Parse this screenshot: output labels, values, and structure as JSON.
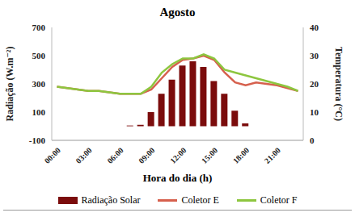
{
  "chart_data": {
    "type": "bar",
    "title": "Agosto",
    "x_label": "Hora do dia (h)",
    "y_label": "Radiação (W.m⁻²)",
    "y2_label": "Temperatura (°C)",
    "categories": [
      "00:00",
      null,
      null,
      "03:00",
      null,
      null,
      "06:00",
      null,
      null,
      "09:00",
      null,
      null,
      "12:00",
      null,
      null,
      "15:00",
      null,
      null,
      "18:00",
      null,
      null,
      "21:00",
      null,
      null
    ],
    "ylim": [
      -100,
      700
    ],
    "yticks": [
      -100,
      100,
      300,
      500,
      700
    ],
    "y2lim": [
      0,
      40
    ],
    "y2ticks": [
      0,
      10,
      20,
      30,
      40
    ],
    "grid": false,
    "legend": "bottom",
    "series": [
      {
        "name": "Radiação Solar",
        "type": "bar",
        "color": "#7b0c0c",
        "values": [
          0,
          0,
          0,
          0,
          0,
          0,
          0,
          5,
          10,
          100,
          230,
          330,
          430,
          460,
          420,
          320,
          230,
          110,
          20,
          0,
          0,
          0,
          0,
          0
        ]
      },
      {
        "name": "Coletor E",
        "type": "line",
        "axis": "y2",
        "color": "#d6604d",
        "values": [
          19,
          18.5,
          18,
          17.5,
          17.5,
          17,
          16.5,
          16.5,
          16.5,
          18,
          22,
          26,
          28.5,
          29,
          30,
          28.5,
          24,
          20.5,
          19.5,
          20.5,
          20,
          19.5,
          18.5,
          17.5
        ]
      },
      {
        "name": "Coletor F",
        "type": "line",
        "axis": "y2",
        "color": "#8dc63f",
        "values": [
          19,
          18.5,
          18,
          17.5,
          17.5,
          17,
          16.5,
          16.5,
          16.5,
          19,
          24,
          27,
          29,
          29,
          30.5,
          29,
          25,
          24,
          23,
          22,
          21,
          20,
          19,
          17.5
        ]
      }
    ]
  }
}
